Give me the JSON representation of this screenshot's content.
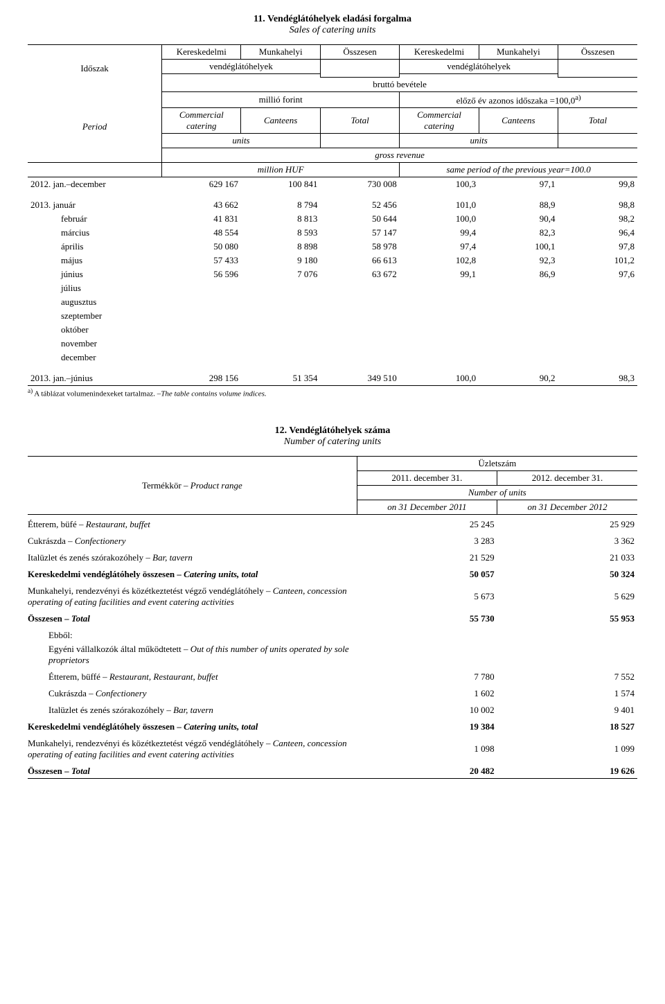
{
  "table1": {
    "title_hu": "11. Vendéglátóhelyek eladási forgalma",
    "title_en": "Sales of catering units",
    "header": {
      "idoszak": "Időszak",
      "period": "Period",
      "kereskedelmi": "Kereskedelmi",
      "munkahelyi": "Munkahelyi",
      "osszesen": "Összesen",
      "vendeglatohelyek": "vendéglátóhelyek",
      "brutto_bevetele": "bruttó bevétele",
      "millio_forint": "millió forint",
      "elozo_ev": "előző év azonos időszaka =100,0",
      "sup_a": "a)",
      "commercial_catering": "Commercial catering",
      "canteens": "Canteens",
      "total": "Total",
      "units": "units",
      "gross_revenue": "gross revenue",
      "million_huf": "million HUF",
      "same_period": "same period of the previous year=100.0"
    },
    "rows": [
      {
        "label": "2012. jan.–december",
        "c1": "629 167",
        "c2": "100 841",
        "c3": "730 008",
        "c4": "100,3",
        "c5": "97,1",
        "c6": "99,8"
      },
      {
        "label": "2013. január",
        "c1": "43 662",
        "c2": "8 794",
        "c3": "52 456",
        "c4": "101,0",
        "c5": "88,9",
        "c6": "98,8"
      },
      {
        "label": "február",
        "c1": "41 831",
        "c2": "8 813",
        "c3": "50 644",
        "c4": "100,0",
        "c5": "90,4",
        "c6": "98,2"
      },
      {
        "label": "március",
        "c1": "48 554",
        "c2": "8 593",
        "c3": "57 147",
        "c4": "99,4",
        "c5": "82,3",
        "c6": "96,4"
      },
      {
        "label": "április",
        "c1": "50 080",
        "c2": "8 898",
        "c3": "58 978",
        "c4": "97,4",
        "c5": "100,1",
        "c6": "97,8"
      },
      {
        "label": "május",
        "c1": "57 433",
        "c2": "9 180",
        "c3": "66 613",
        "c4": "102,8",
        "c5": "92,3",
        "c6": "101,2"
      },
      {
        "label": "június",
        "c1": "56 596",
        "c2": "7 076",
        "c3": "63 672",
        "c4": "99,1",
        "c5": "86,9",
        "c6": "97,6"
      },
      {
        "label": "július",
        "c1": "",
        "c2": "",
        "c3": "",
        "c4": "",
        "c5": "",
        "c6": ""
      },
      {
        "label": "augusztus",
        "c1": "",
        "c2": "",
        "c3": "",
        "c4": "",
        "c5": "",
        "c6": ""
      },
      {
        "label": "szeptember",
        "c1": "",
        "c2": "",
        "c3": "",
        "c4": "",
        "c5": "",
        "c6": ""
      },
      {
        "label": "október",
        "c1": "",
        "c2": "",
        "c3": "",
        "c4": "",
        "c5": "",
        "c6": ""
      },
      {
        "label": "november",
        "c1": "",
        "c2": "",
        "c3": "",
        "c4": "",
        "c5": "",
        "c6": ""
      },
      {
        "label": "december",
        "c1": "",
        "c2": "",
        "c3": "",
        "c4": "",
        "c5": "",
        "c6": ""
      }
    ],
    "summary": {
      "label": "2013. jan.–június",
      "c1": "298 156",
      "c2": "51 354",
      "c3": "349 510",
      "c4": "100,0",
      "c5": "90,2",
      "c6": "98,3"
    },
    "footnote_a": "a)",
    "footnote_text_hu": " A táblázat volumenindexeket tartalmaz. –",
    "footnote_text_en": "The table contains volume indices."
  },
  "table2": {
    "title_hu": "12. Vendéglátóhelyek száma",
    "title_en": "Number of catering units",
    "header": {
      "termekkoer_hu": "Termékkör – ",
      "termekkoer_en": "Product range",
      "uzletszam": "Üzletszám",
      "col1_hu": "2011. december 31.",
      "col2_hu": "2012. december 31.",
      "number_of_units": "Number of units",
      "col1_en": "on 31 December 2011",
      "col2_en": "on 31 December 2012"
    },
    "rows": [
      {
        "name_hu": "Étterem, büfé – ",
        "name_en": "Restaurant, buffet",
        "v1": "25 245",
        "v2": "25 929",
        "bold": false
      },
      {
        "name_hu": "Cukrászda – ",
        "name_en": "Confectionery",
        "v1": "3 283",
        "v2": "3 362",
        "bold": false
      },
      {
        "name_hu": "Italüzlet és zenés szórakozóhely –  ",
        "name_en": "Bar, tavern",
        "v1": "21 529",
        "v2": "21 033",
        "bold": false
      },
      {
        "name_hu": "Kereskedelmi vendéglátóhely összesen – ",
        "name_en": "Catering units, total",
        "v1": "50 057",
        "v2": "50 324",
        "bold": true
      },
      {
        "name_hu": "Munkahelyi, rendezvényi és közétkeztetést végző vendéglátóhely – ",
        "name_en": "Canteen, concession operating of eating facilities and event catering activities",
        "v1": "5 673",
        "v2": "5 629",
        "bold": false
      },
      {
        "name_hu": "Összesen – ",
        "name_en": "Total",
        "v1": "55 730",
        "v2": "55 953",
        "bold": true
      }
    ],
    "ebbol": "Ebből:",
    "ebbol_sub_hu": "Egyéni vállalkozók által működtetett – ",
    "ebbol_sub_en": "Out of  this number of units operated by sole proprietors",
    "rows2": [
      {
        "name_hu": "Étterem, büffé  – ",
        "name_en": "Restaurant, Restaurant, buffet",
        "v1": "7 780",
        "v2": "7 552",
        "bold": false
      },
      {
        "name_hu": "Cukrászda  – ",
        "name_en": "Confectionery",
        "v1": "1 602",
        "v2": "1 574",
        "bold": false
      },
      {
        "name_hu": "Italüzlet és zenés szórakozóhely –  ",
        "name_en": "Bar, tavern",
        "v1": "10 002",
        "v2": "9 401",
        "bold": false
      },
      {
        "name_hu": "Kereskedelmi vendéglátóhely összesen – ",
        "name_en": "Catering units, total",
        "v1": "19 384",
        "v2": "18 527",
        "bold": true
      },
      {
        "name_hu": "Munkahelyi, rendezvényi és közétkeztetést végző vendéglátóhely – ",
        "name_en": "Canteen, concession operating of eating facilities and event catering activities",
        "v1": "1 098",
        "v2": "1 099",
        "bold": false
      },
      {
        "name_hu": "Összesen – ",
        "name_en": "Total",
        "v1": "20 482",
        "v2": "19 626",
        "bold": true
      }
    ]
  }
}
